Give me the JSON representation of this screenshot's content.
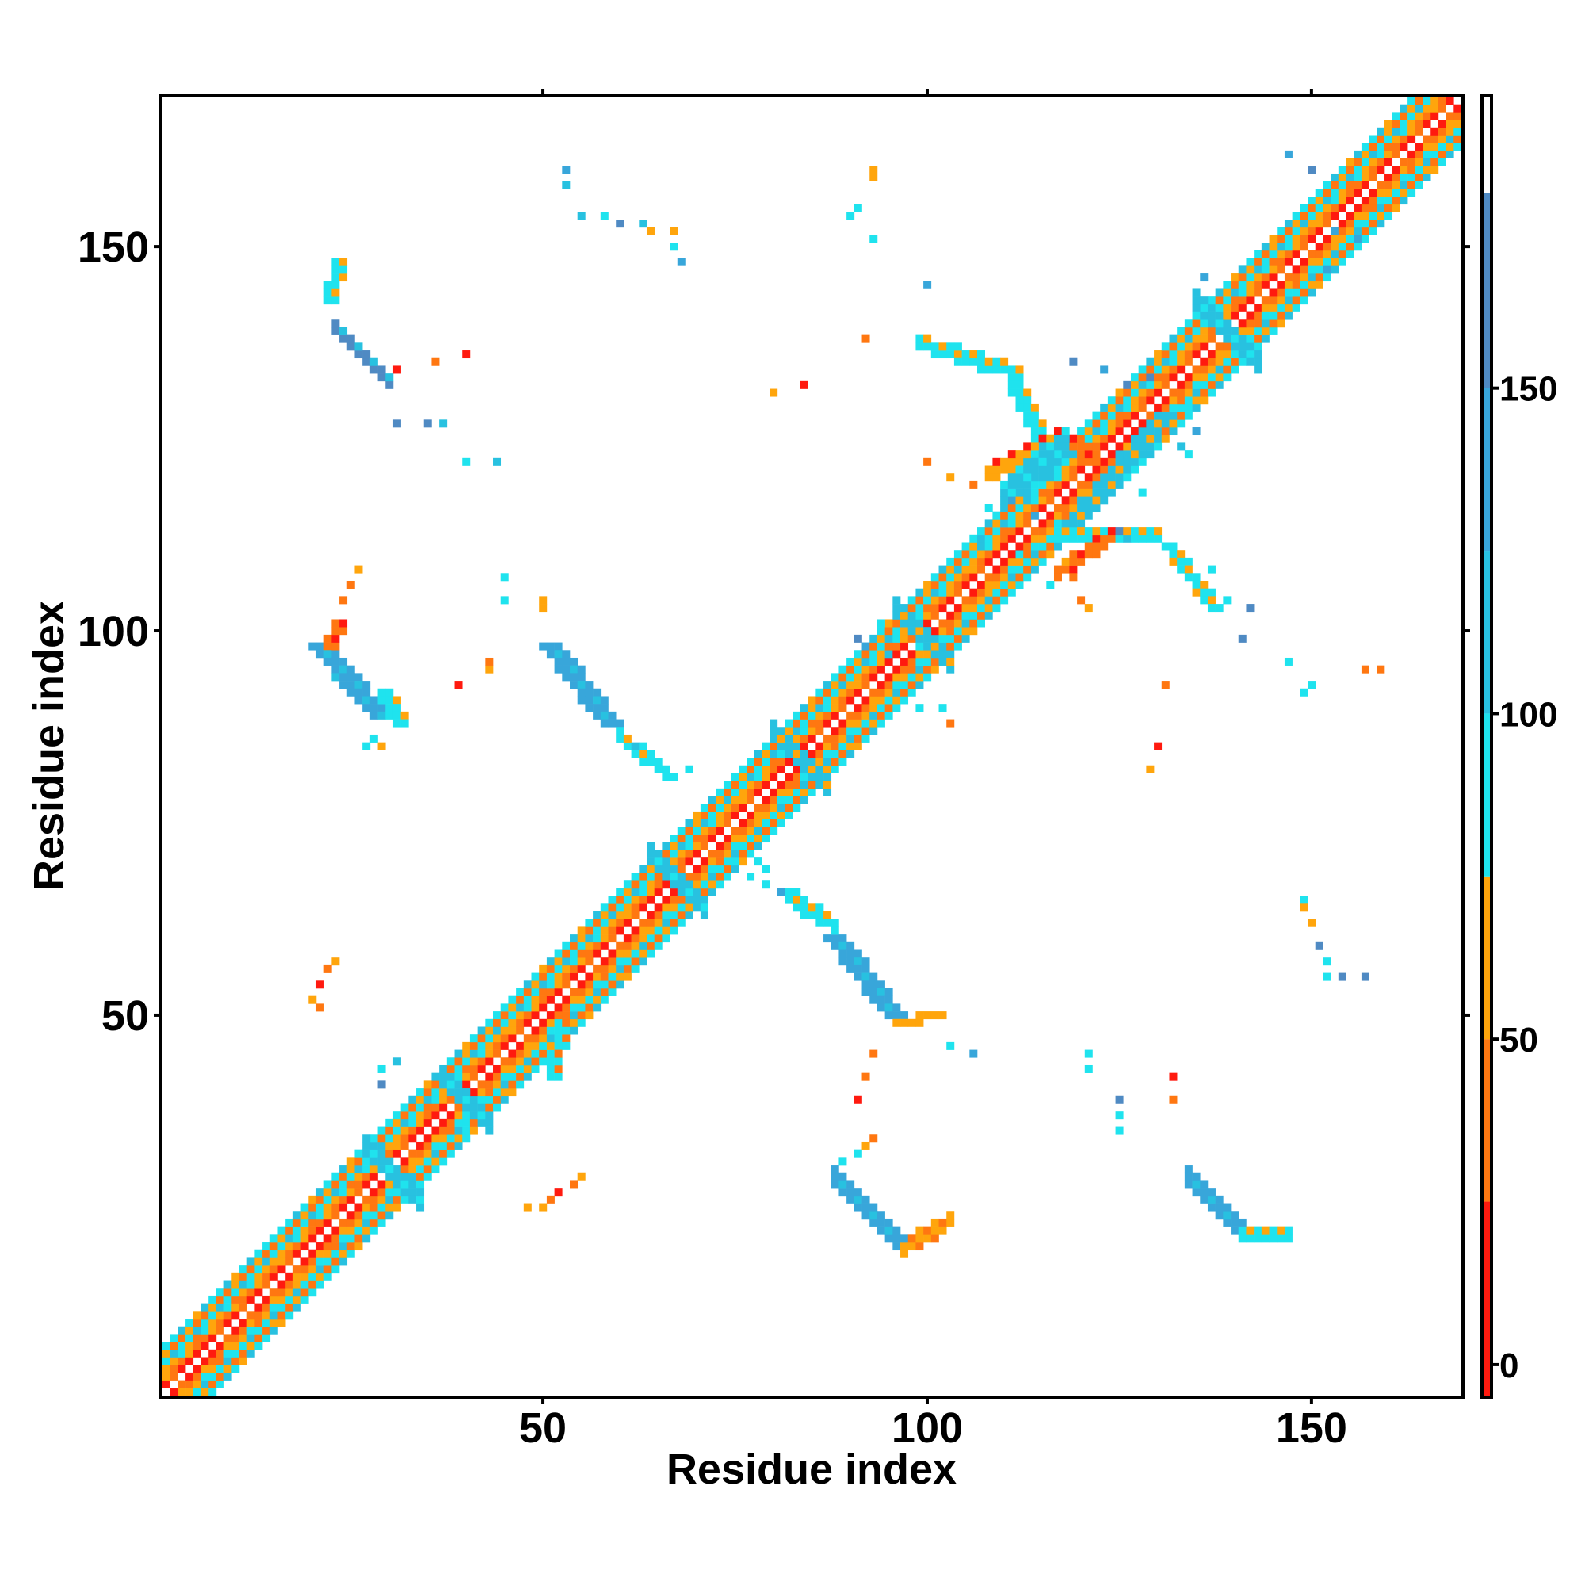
{
  "chart_data": {
    "type": "heatmap",
    "title": "",
    "xlabel": "Residue index",
    "ylabel": "Residue index",
    "xlim": [
      1,
      169
    ],
    "ylim": [
      1,
      169
    ],
    "x_ticks": [
      50,
      100,
      150
    ],
    "y_ticks": [
      50,
      100,
      150
    ],
    "colorbar": {
      "range": [
        -5,
        195
      ],
      "ticks": [
        0,
        50,
        100,
        150
      ],
      "bands": [
        {
          "from": -5,
          "to": 25,
          "color": "#ff1a0f"
        },
        {
          "from": 25,
          "to": 50,
          "color": "#ff7711"
        },
        {
          "from": 50,
          "to": 75,
          "color": "#ffa50c"
        },
        {
          "from": 75,
          "to": 100,
          "color": "#1fe3ee"
        },
        {
          "from": 100,
          "to": 125,
          "color": "#28c1e0"
        },
        {
          "from": 125,
          "to": 150,
          "color": "#38a6da"
        },
        {
          "from": 150,
          "to": 180,
          "color": "#4f8ac3"
        },
        {
          "from": 180,
          "to": 195,
          "color": "#ffffff"
        }
      ]
    },
    "diagonal": {
      "range": [
        1,
        169
      ],
      "band_values": [
        {
          "offset": 1,
          "value": 10
        },
        {
          "offset": 2,
          "value": 40
        },
        {
          "offset": 3,
          "value": 60
        },
        {
          "offset": 4,
          "value": 90
        },
        {
          "offset": 5,
          "value": 40
        },
        {
          "offset": 6,
          "value": 80
        }
      ]
    },
    "segments": [
      {
        "x1": 21,
        "y1": 98,
        "x2": 29,
        "y2": 89,
        "value": 140,
        "width": 3
      },
      {
        "x1": 51,
        "y1": 98,
        "x2": 59,
        "y2": 88,
        "value": 140,
        "width": 3
      },
      {
        "x1": 88,
        "y1": 60,
        "x2": 96,
        "y2": 50,
        "value": 140,
        "width": 3
      },
      {
        "x1": 88,
        "y1": 29,
        "x2": 97,
        "y2": 20,
        "value": 145,
        "width": 3
      },
      {
        "x1": 134,
        "y1": 29,
        "x2": 141,
        "y2": 22,
        "value": 145,
        "width": 3
      },
      {
        "x1": 23,
        "y1": 140,
        "x2": 30,
        "y2": 133,
        "value": 150,
        "width": 2
      },
      {
        "x1": 30,
        "y1": 92,
        "x2": 32,
        "y2": 88,
        "value": 90,
        "width": 2
      },
      {
        "x1": 60,
        "y1": 87,
        "x2": 66,
        "y2": 82,
        "value": 95,
        "width": 2
      },
      {
        "x1": 82,
        "y1": 66,
        "x2": 88,
        "y2": 62,
        "value": 90,
        "width": 2
      },
      {
        "x1": 96,
        "y1": 49,
        "x2": 102,
        "y2": 50,
        "value": 60,
        "width": 1
      },
      {
        "x1": 97,
        "y1": 20,
        "x2": 103,
        "y2": 24,
        "value": 60,
        "width": 2
      },
      {
        "x1": 141,
        "y1": 22,
        "x2": 147,
        "y2": 22,
        "value": 90,
        "width": 2
      },
      {
        "x1": 99,
        "y1": 138,
        "x2": 112,
        "y2": 134,
        "value": 95,
        "width": 2
      },
      {
        "x1": 112,
        "y1": 132,
        "x2": 116,
        "y2": 124,
        "value": 95,
        "width": 2
      },
      {
        "x1": 117,
        "y1": 113,
        "x2": 130,
        "y2": 113,
        "value": 95,
        "width": 2
      },
      {
        "x1": 132,
        "y1": 111,
        "x2": 138,
        "y2": 103,
        "value": 95,
        "width": 2
      },
      {
        "x1": 108,
        "y1": 121,
        "x2": 118,
        "y2": 126,
        "value": 55,
        "width": 2
      },
      {
        "x1": 118,
        "y1": 126,
        "x2": 124,
        "y2": 121,
        "value": 35,
        "width": 2
      },
      {
        "x1": 117,
        "y1": 108,
        "x2": 124,
        "y2": 113,
        "value": 40,
        "width": 2
      },
      {
        "x1": 110,
        "y1": 118,
        "x2": 118,
        "y2": 125,
        "value": 115,
        "width": 4
      },
      {
        "x1": 119,
        "y1": 114,
        "x2": 131,
        "y2": 128,
        "value": 100,
        "width": 3
      },
      {
        "x1": 135,
        "y1": 143,
        "x2": 143,
        "y2": 135,
        "value": 110,
        "width": 3
      },
      {
        "x1": 37,
        "y1": 42,
        "x2": 43,
        "y2": 36,
        "value": 120,
        "width": 3
      },
      {
        "x1": 27,
        "y1": 33,
        "x2": 34,
        "y2": 26,
        "value": 110,
        "width": 3
      },
      {
        "x1": 64,
        "y1": 71,
        "x2": 71,
        "y2": 64,
        "value": 110,
        "width": 3
      },
      {
        "x1": 80,
        "y1": 87,
        "x2": 87,
        "y2": 80,
        "value": 105,
        "width": 3
      },
      {
        "x1": 96,
        "y1": 103,
        "x2": 103,
        "y2": 96,
        "value": 105,
        "width": 3
      },
      {
        "x1": 23,
        "y1": 98,
        "x2": 24,
        "y2": 101,
        "value": 40,
        "width": 2
      },
      {
        "x1": 23,
        "y1": 143,
        "x2": 24,
        "y2": 148,
        "value": 90,
        "width": 2
      },
      {
        "x1": 52,
        "y1": 42,
        "x2": 53,
        "y2": 49,
        "value": 80,
        "width": 2
      }
    ],
    "points": [
      [
        53,
        160,
        140
      ],
      [
        53,
        158,
        110
      ],
      [
        55,
        154,
        110
      ],
      [
        58,
        154,
        95
      ],
      [
        60,
        153,
        150
      ],
      [
        63,
        153,
        100
      ],
      [
        64,
        152,
        55
      ],
      [
        67,
        152,
        55
      ],
      [
        67,
        150,
        95
      ],
      [
        68,
        148,
        140
      ],
      [
        93,
        160,
        55
      ],
      [
        93,
        159,
        55
      ],
      [
        90,
        154,
        95
      ],
      [
        91,
        155,
        95
      ],
      [
        93,
        151,
        95
      ],
      [
        100,
        145,
        140
      ],
      [
        92,
        138,
        40
      ],
      [
        80,
        131,
        55
      ],
      [
        84,
        132,
        10
      ],
      [
        31,
        134,
        10
      ],
      [
        36,
        135,
        40
      ],
      [
        40,
        136,
        10
      ],
      [
        31,
        127,
        150
      ],
      [
        35,
        127,
        150
      ],
      [
        37,
        127,
        110
      ],
      [
        40,
        122,
        95
      ],
      [
        44,
        122,
        110
      ],
      [
        45,
        107,
        95
      ],
      [
        45,
        104,
        95
      ],
      [
        50,
        104,
        55
      ],
      [
        50,
        103,
        55
      ],
      [
        43,
        95,
        55
      ],
      [
        39,
        93,
        10
      ],
      [
        43,
        96,
        40
      ],
      [
        26,
        108,
        55
      ],
      [
        25,
        106,
        40
      ],
      [
        24,
        104,
        40
      ],
      [
        23,
        57,
        55
      ],
      [
        22,
        56,
        40
      ],
      [
        21,
        54,
        10
      ],
      [
        20,
        52,
        55
      ],
      [
        21,
        51,
        40
      ],
      [
        55,
        29,
        55
      ],
      [
        54,
        28,
        40
      ],
      [
        52,
        27,
        10
      ],
      [
        51,
        26,
        40
      ],
      [
        50,
        25,
        55
      ],
      [
        48,
        25,
        55
      ],
      [
        31,
        44,
        110
      ],
      [
        29,
        43,
        95
      ],
      [
        29,
        41,
        150
      ],
      [
        40,
        37,
        95
      ],
      [
        40,
        35,
        95
      ],
      [
        83,
        66,
        95
      ],
      [
        81,
        66,
        140
      ],
      [
        79,
        67,
        95
      ],
      [
        79,
        69,
        95
      ],
      [
        78,
        70,
        95
      ],
      [
        93,
        45,
        40
      ],
      [
        92,
        42,
        40
      ],
      [
        91,
        39,
        10
      ],
      [
        103,
        46,
        95
      ],
      [
        106,
        45,
        140
      ],
      [
        121,
        45,
        95
      ],
      [
        121,
        43,
        95
      ],
      [
        125,
        39,
        150
      ],
      [
        125,
        37,
        95
      ],
      [
        125,
        35,
        95
      ],
      [
        132,
        42,
        10
      ],
      [
        132,
        39,
        40
      ],
      [
        89,
        31,
        95
      ],
      [
        91,
        32,
        95
      ],
      [
        92,
        33,
        55
      ],
      [
        93,
        34,
        40
      ],
      [
        141,
        99,
        150
      ],
      [
        147,
        96,
        95
      ],
      [
        150,
        93,
        95
      ],
      [
        149,
        92,
        95
      ],
      [
        157,
        95,
        40
      ],
      [
        159,
        95,
        40
      ],
      [
        131,
        93,
        40
      ],
      [
        130,
        85,
        10
      ],
      [
        129,
        82,
        55
      ],
      [
        149,
        65,
        95
      ],
      [
        149,
        64,
        55
      ],
      [
        150,
        62,
        55
      ],
      [
        151,
        59,
        150
      ],
      [
        152,
        57,
        95
      ],
      [
        152,
        55,
        95
      ],
      [
        154,
        55,
        150
      ],
      [
        157,
        55,
        150
      ],
      [
        147,
        162,
        140
      ],
      [
        150,
        160,
        150
      ],
      [
        156,
        151,
        140
      ],
      [
        153,
        152,
        140
      ],
      [
        136,
        146,
        140
      ],
      [
        152,
        147,
        140
      ],
      [
        119,
        135,
        150
      ],
      [
        123,
        134,
        140
      ],
      [
        126,
        132,
        150
      ],
      [
        129,
        133,
        150
      ],
      [
        134,
        129,
        95
      ],
      [
        135,
        126,
        140
      ],
      [
        129,
        126,
        110
      ],
      [
        130,
        128,
        110
      ],
      [
        133,
        124,
        110
      ],
      [
        134,
        123,
        95
      ],
      [
        125,
        113,
        150
      ],
      [
        126,
        112,
        110
      ],
      [
        128,
        118,
        95
      ],
      [
        137,
        108,
        95
      ],
      [
        139,
        104,
        95
      ],
      [
        142,
        103,
        150
      ],
      [
        99,
        90,
        95
      ],
      [
        102,
        90,
        95
      ],
      [
        103,
        88,
        40
      ],
      [
        28,
        86,
        95
      ],
      [
        29,
        85,
        55
      ],
      [
        27,
        85,
        95
      ],
      [
        62,
        85,
        110
      ],
      [
        65,
        83,
        95
      ],
      [
        67,
        81,
        95
      ],
      [
        69,
        82,
        95
      ],
      [
        75,
        70,
        95
      ],
      [
        77,
        68,
        95
      ],
      [
        103,
        120,
        55
      ],
      [
        100,
        122,
        40
      ],
      [
        106,
        119,
        40
      ],
      [
        108,
        116,
        95
      ],
      [
        111,
        117,
        140
      ],
      [
        114,
        115,
        140
      ],
      [
        107,
        112,
        110
      ],
      [
        112,
        110,
        95
      ],
      [
        116,
        106,
        95
      ],
      [
        119,
        107,
        40
      ],
      [
        118,
        109,
        55
      ],
      [
        120,
        104,
        40
      ],
      [
        121,
        103,
        55
      ],
      [
        92,
        98,
        140
      ],
      [
        91,
        99,
        150
      ],
      [
        95,
        97,
        110
      ],
      [
        94,
        101,
        95
      ],
      [
        96,
        100,
        95
      ],
      [
        99,
        98,
        95
      ],
      [
        100,
        96,
        95
      ]
    ]
  }
}
